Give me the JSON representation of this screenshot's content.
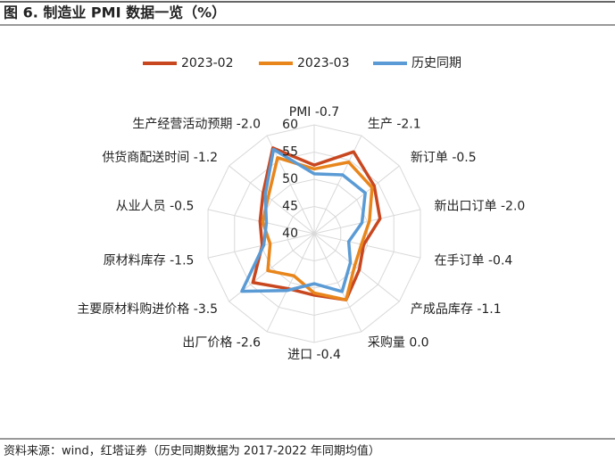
{
  "chart_data": {
    "type": "radar",
    "title": "图 6. 制造业 PMI 数据一览（%）",
    "source": "资料来源：wind，红塔证券（历史同期数据为 2017-2022 年同期均值）",
    "categories": [
      "PMI -0.7",
      "生产 -2.1",
      "新订单 -0.5",
      "新出口订单 -2.0",
      "在手订单 -0.4",
      "产成品库存 -1.1",
      "采购量 0.0",
      "进口 -0.4",
      "出厂价格 -2.6",
      "主要原材料购进价格 -3.5",
      "原材料库存 -1.5",
      "从业人员 -0.5",
      "供货商配送时间 -1.2",
      "生产经营活动预期 -2.0"
    ],
    "series": [
      {
        "name": "2023-02",
        "color": "#c8471f",
        "values": [
          52.6,
          56.7,
          54.1,
          52.4,
          49.3,
          50.6,
          53.5,
          51.3,
          51.2,
          54.4,
          49.8,
          50.2,
          52.0,
          57.5
        ]
      },
      {
        "name": "2023-03",
        "color": "#e8861c",
        "values": [
          51.9,
          54.6,
          53.6,
          50.4,
          48.9,
          49.5,
          53.5,
          50.9,
          48.6,
          50.9,
          48.3,
          49.7,
          50.8,
          55.5
        ]
      },
      {
        "name": "历史同期",
        "color": "#5b9bd5",
        "values": [
          51.0,
          52.0,
          52.0,
          49.0,
          46.5,
          48.5,
          51.8,
          49.2,
          51.6,
          57.0,
          49.5,
          49.0,
          51.5,
          57.2
        ]
      }
    ],
    "ylim": [
      40,
      60
    ],
    "yticks": [
      40,
      45,
      50,
      55,
      60
    ],
    "grid": true
  }
}
